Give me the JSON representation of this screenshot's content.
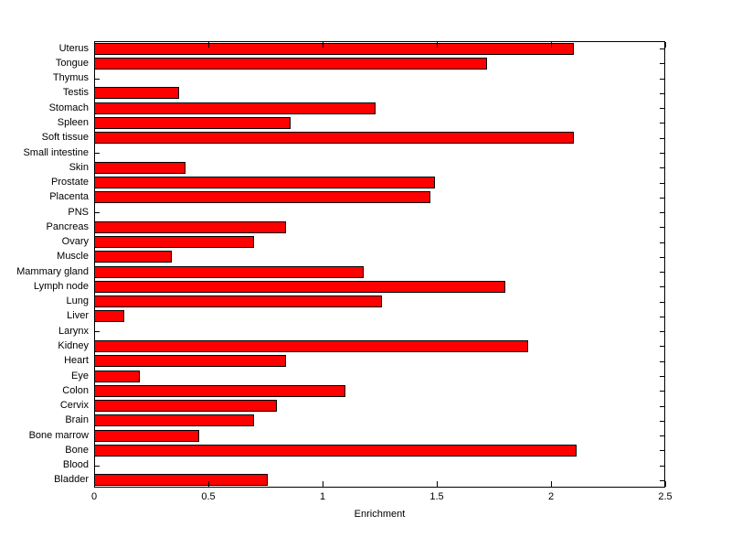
{
  "chart_data": {
    "type": "bar",
    "orientation": "horizontal",
    "title": "",
    "xlabel": "Enrichment",
    "ylabel": "",
    "xlim": [
      0,
      2.5
    ],
    "xticks": [
      0,
      0.5,
      1,
      1.5,
      2,
      2.5
    ],
    "xtick_labels": [
      "0",
      "0.5",
      "1",
      "1.5",
      "2",
      "2.5"
    ],
    "grid": false,
    "legend": false,
    "categories_top_to_bottom": [
      "Uterus",
      "Tongue",
      "Thymus",
      "Testis",
      "Stomach",
      "Spleen",
      "Soft tissue",
      "Small intestine",
      "Skin",
      "Prostate",
      "Placenta",
      "PNS",
      "Pancreas",
      "Ovary",
      "Muscle",
      "Mammary gland",
      "Lymph node",
      "Lung",
      "Liver",
      "Larynx",
      "Kidney",
      "Heart",
      "Eye",
      "Colon",
      "Cervix",
      "Brain",
      "Bone marrow",
      "Bone",
      "Blood",
      "Bladder"
    ],
    "values": [
      2.1,
      1.72,
      0,
      0.37,
      1.23,
      0.86,
      2.1,
      0,
      0.4,
      1.49,
      1.47,
      0,
      0.84,
      0.7,
      0.34,
      1.18,
      1.8,
      1.26,
      0.13,
      0,
      1.9,
      0.84,
      0.2,
      1.1,
      0.8,
      0.7,
      0.46,
      2.11,
      0,
      0.76
    ],
    "colors": {
      "bar_fill": "#ff0000",
      "bar_edge": "#000000",
      "axis": "#000000",
      "background": "#ffffff",
      "text": "#000000"
    }
  }
}
